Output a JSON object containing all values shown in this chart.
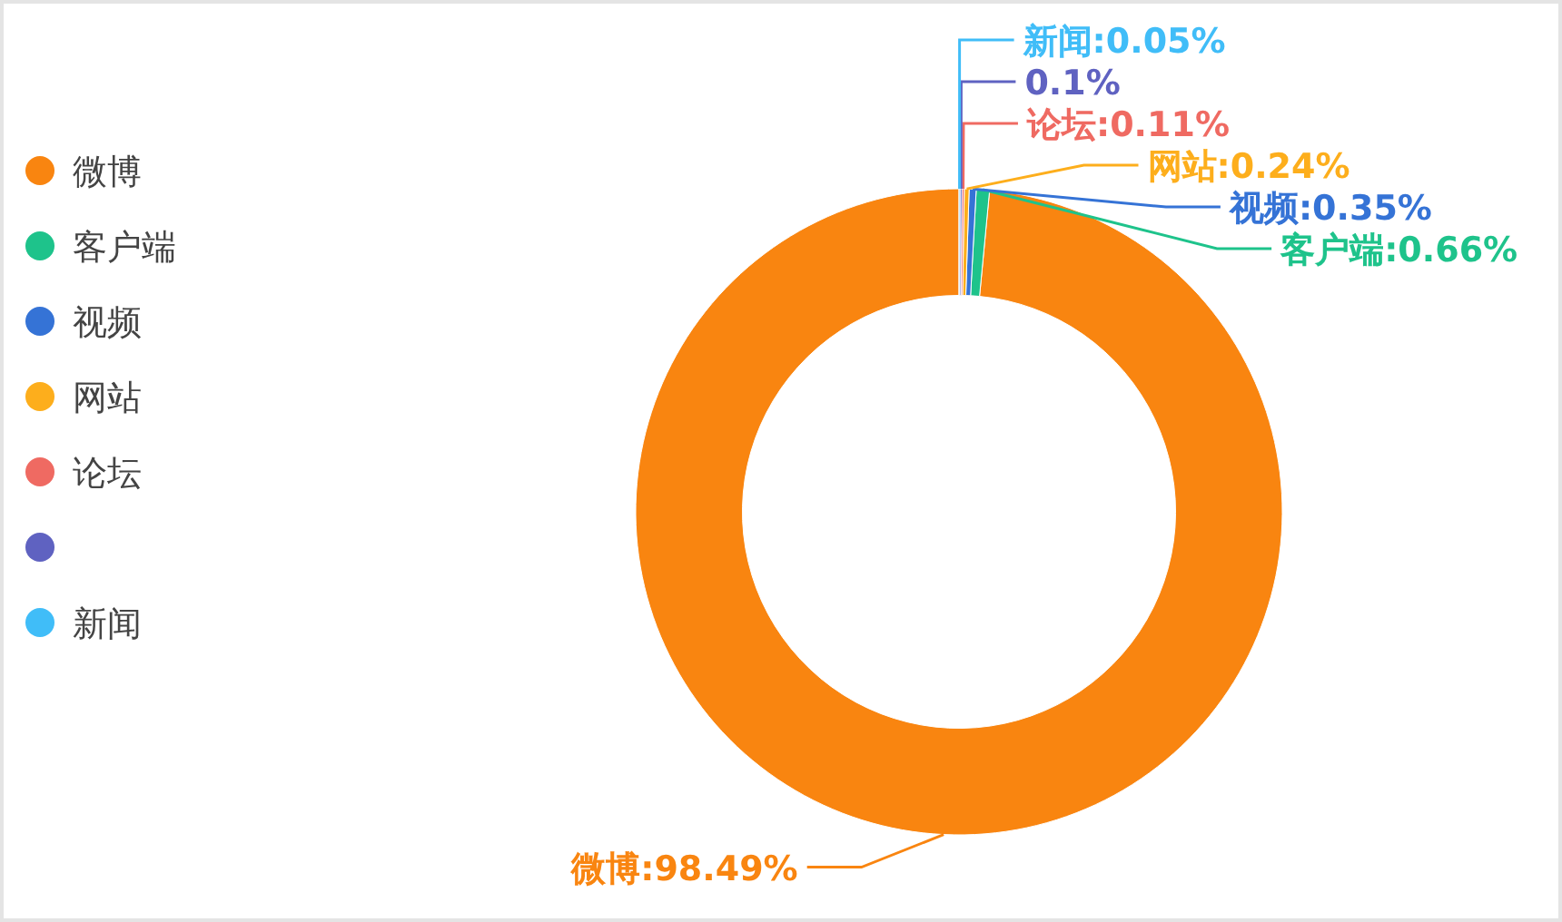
{
  "chart_data": {
    "type": "donut",
    "categories": [
      "微博",
      "客户端",
      "视频",
      "网站",
      "论坛",
      null,
      "新闻"
    ],
    "values": [
      98.49,
      0.66,
      0.35,
      0.24,
      0.11,
      0.1,
      0.05
    ],
    "value_labels": [
      ":98.49%",
      ":0.66%",
      ":0.35%",
      ":0.24%",
      ":0.11%",
      "0.1%",
      ":0.05%"
    ],
    "colors": [
      "#f98510",
      "#1ec38b",
      "#3573d6",
      "#fdae1c",
      "#ef6a62",
      "#5f62c1",
      "#40bdf8"
    ],
    "legend": "left"
  }
}
